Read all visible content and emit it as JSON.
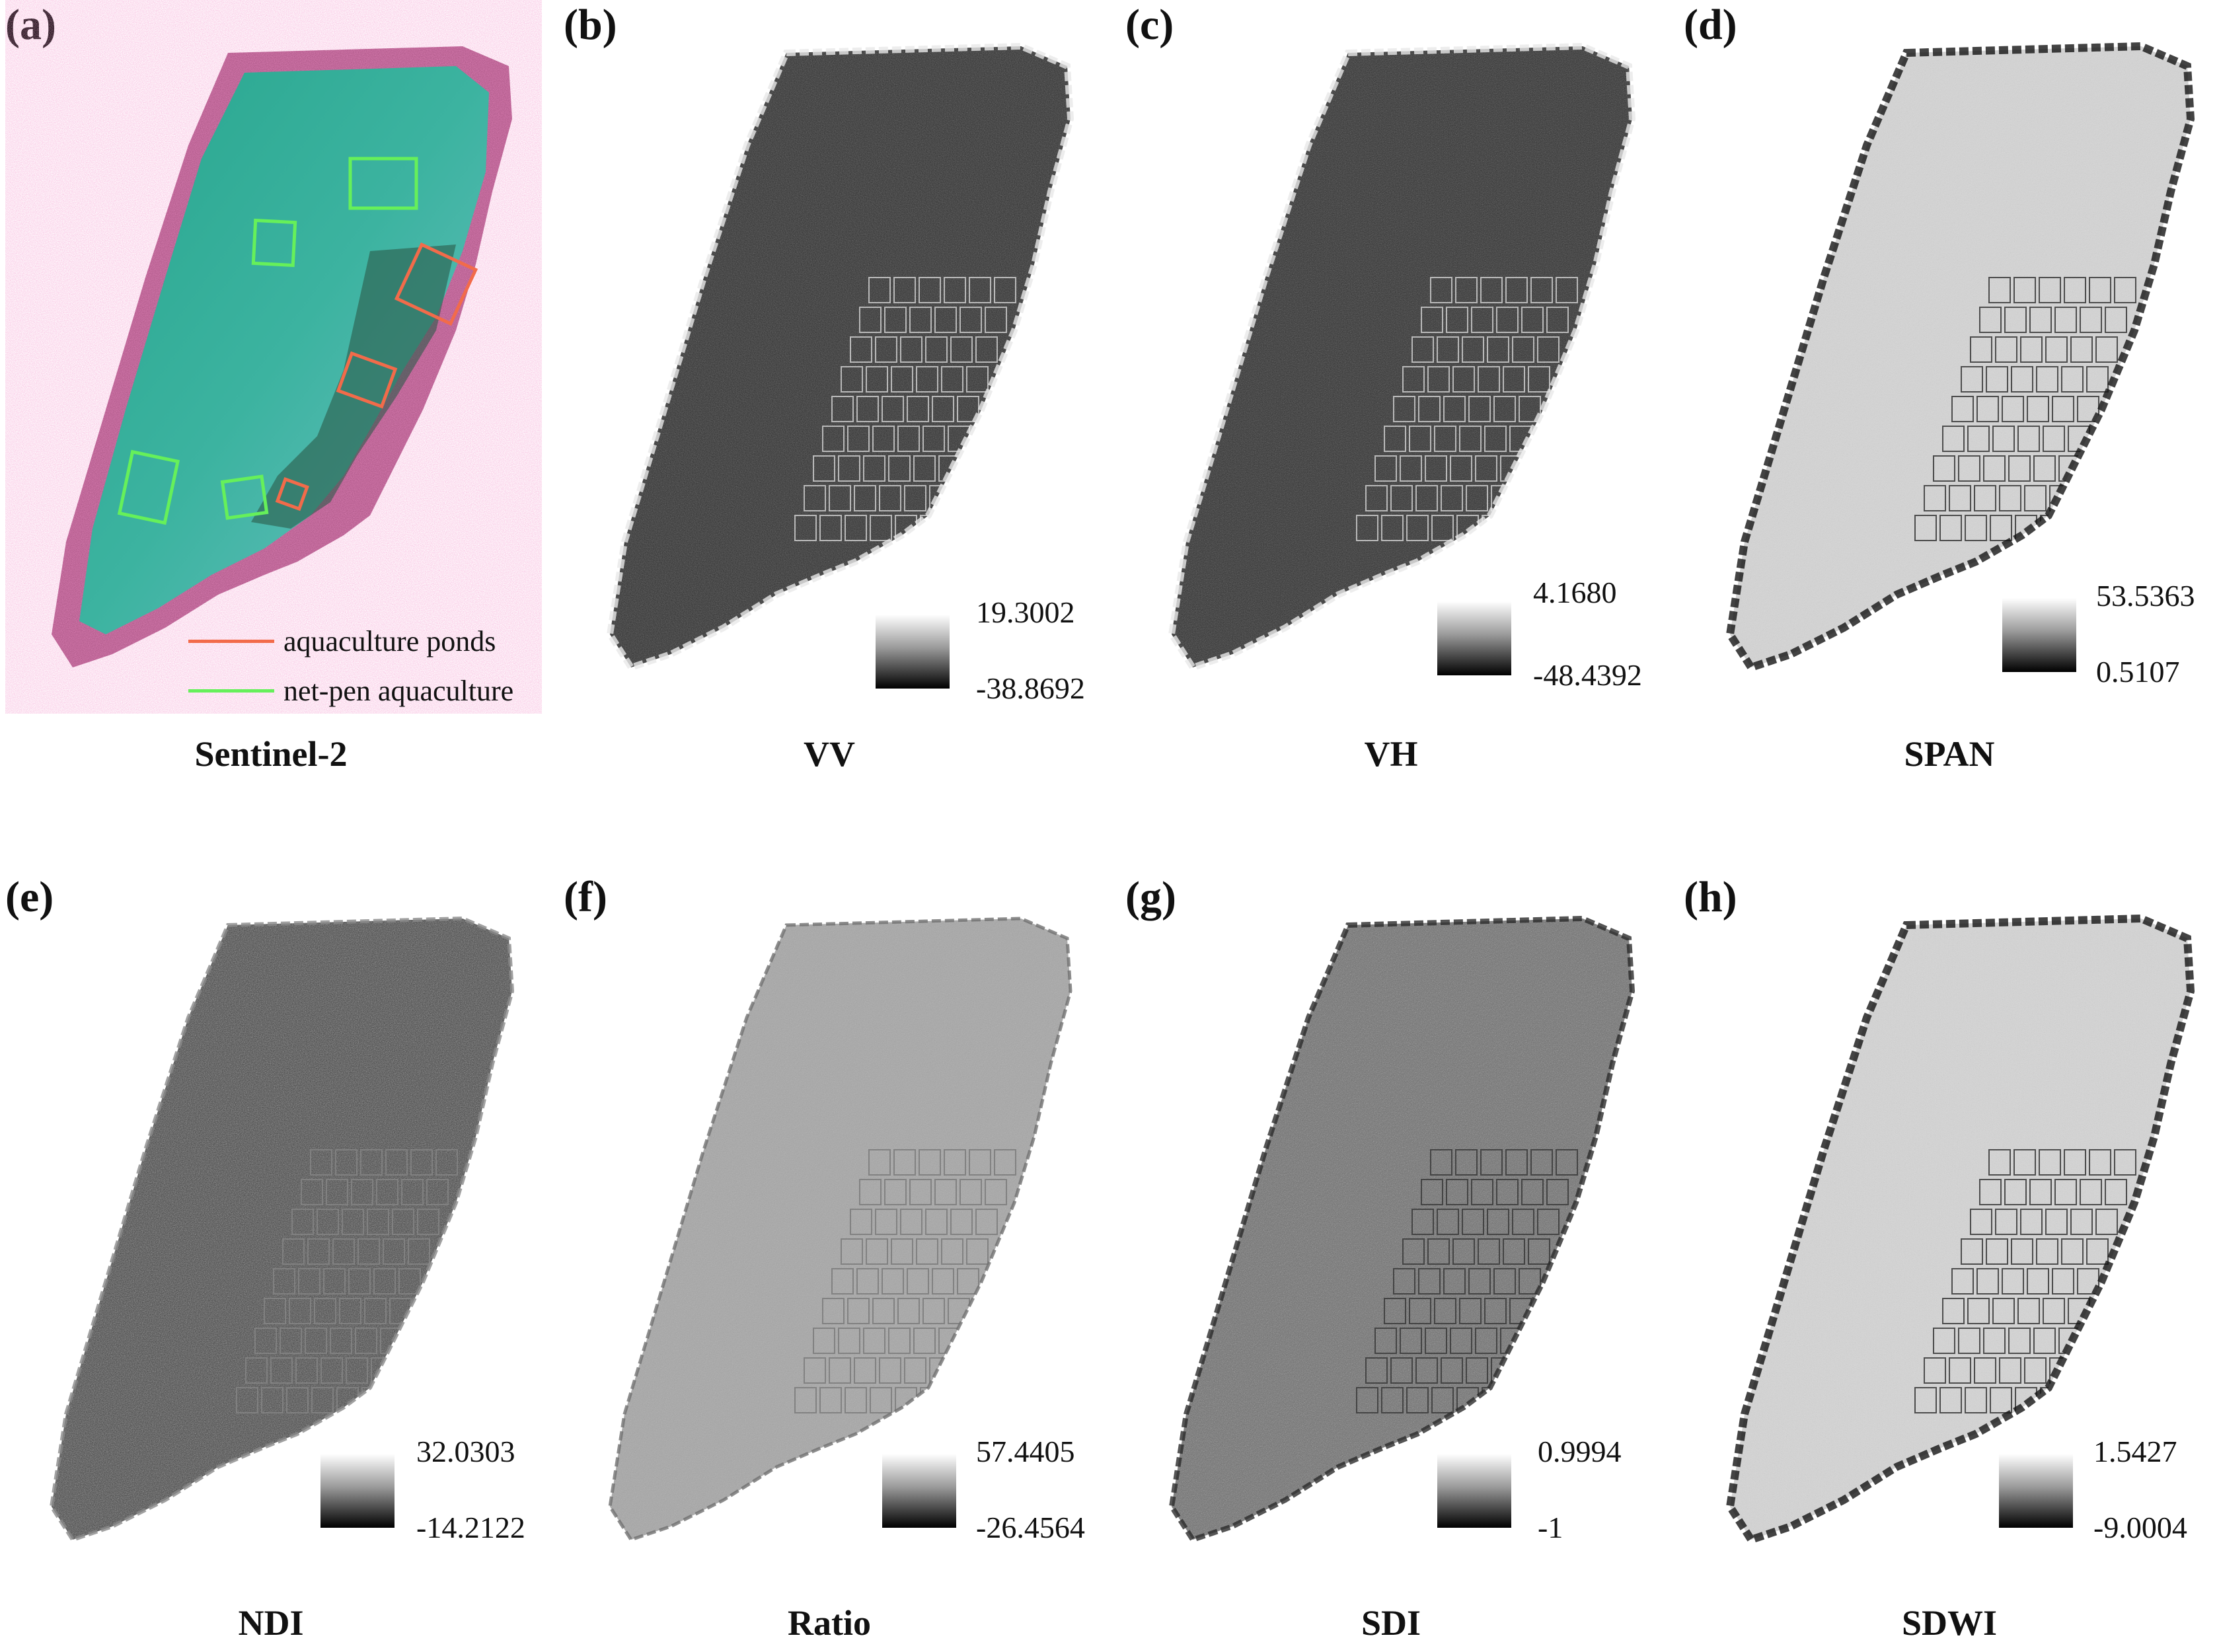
{
  "panels": [
    {
      "letter": "(a)",
      "title": "Sentinel-2",
      "style": "rgb"
    },
    {
      "letter": "(b)",
      "title": "VV",
      "style": "dark",
      "colorbar": {
        "max": "19.3002",
        "min": "-38.8692"
      }
    },
    {
      "letter": "(c)",
      "title": "VH",
      "style": "dark",
      "colorbar": {
        "max": "4.1680",
        "min": "-48.4392"
      }
    },
    {
      "letter": "(d)",
      "title": "SPAN",
      "style": "light",
      "colorbar": {
        "max": "53.5363",
        "min": "0.5107"
      }
    },
    {
      "letter": "(e)",
      "title": "NDI",
      "style": "noise",
      "colorbar": {
        "max": "32.0303",
        "min": "-14.2122"
      }
    },
    {
      "letter": "(f)",
      "title": "Ratio",
      "style": "gray",
      "colorbar": {
        "max": "57.4405",
        "min": "-26.4564"
      }
    },
    {
      "letter": "(g)",
      "title": "SDI",
      "style": "mid",
      "colorbar": {
        "max": "0.9994",
        "min": "-1"
      }
    },
    {
      "letter": "(h)",
      "title": "SDWI",
      "style": "light",
      "colorbar": {
        "max": "1.5427",
        "min": "-9.0004"
      }
    }
  ],
  "legend": [
    {
      "label": "aquaculture ponds",
      "color": "#f26b4a"
    },
    {
      "label": "net-pen aquaculture",
      "color": "#66f05a"
    }
  ],
  "colors": {
    "water": "#2fa98f",
    "pond_box": "#f26b4a",
    "netpen_box": "#66f05a"
  }
}
